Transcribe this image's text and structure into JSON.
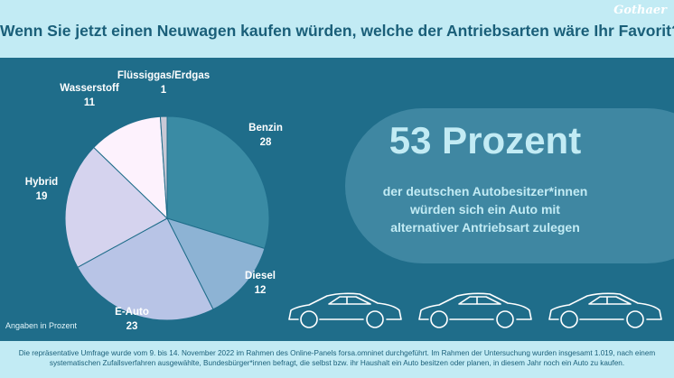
{
  "brand": "Gothaer",
  "title": "Wenn Sie jetzt einen Neuwagen kaufen würden, welche der Antriebsarten wäre Ihr Favorit?",
  "chart_data": {
    "type": "pie",
    "slices": [
      {
        "label": "Benzin",
        "value": 28,
        "color": "#3a8ba4"
      },
      {
        "label": "Diesel",
        "value": 12,
        "color": "#8db3d4"
      },
      {
        "label": "E-Auto",
        "value": 23,
        "color": "#b8c4e6"
      },
      {
        "label": "Hybrid",
        "value": 19,
        "color": "#d5d3ee"
      },
      {
        "label": "Wasserstoff",
        "value": 11,
        "color": "#fdf2fd"
      },
      {
        "label": "Flüssiggas/Erdgas",
        "value": 1,
        "color": "#c9c9d6"
      }
    ],
    "note": "Angaben in Prozent"
  },
  "highlight": {
    "big": "53 Prozent",
    "lines": [
      "der deutschen Autobesitzer*innen",
      "würden sich ein Auto mit",
      "alternativer Antriebsart zulegen"
    ]
  },
  "footer": {
    "line1": "Die repräsentative Umfrage wurde vom 9. bis 14. November 2022 im Rahmen des Online-Panels forsa.omninet durchgeführt. Im Rahmen der Untersuchung wurden insgesamt 1.019, nach einem",
    "line2": "systematischen Zufallsverfahren ausgewählte, Bundesbürger*innen befragt, die selbst bzw. ihr Haushalt ein Auto besitzen oder planen, in diesem Jahr noch ein Auto zu kaufen."
  }
}
